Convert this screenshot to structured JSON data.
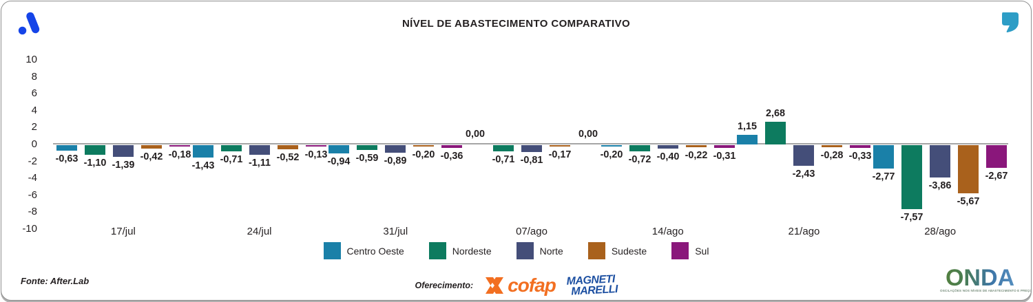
{
  "header": {
    "title": "NÍVEL DE ABASTECIMENTO COMPARATIVO",
    "brand_logo": "abstract-dot-slash-mark",
    "brand_color": "#1544e8",
    "quote_icon": "quote-mark",
    "quote_color": "#2d9dc6"
  },
  "chart_data": {
    "type": "bar",
    "title": "NÍVEL DE ABASTECIMENTO COMPARATIVO",
    "categories": [
      "17/jul",
      "24/jul",
      "31/jul",
      "07/ago",
      "14/ago",
      "21/ago",
      "28/ago"
    ],
    "series": [
      {
        "name": "Centro Oeste",
        "color": "#1a80a8",
        "values": [
          -0.63,
          -1.43,
          -0.94,
          0.0,
          -0.2,
          1.15,
          -2.77
        ]
      },
      {
        "name": "Nordeste",
        "color": "#0d7b5f",
        "values": [
          -1.1,
          -0.71,
          -0.59,
          -0.71,
          -0.72,
          2.68,
          -7.57
        ]
      },
      {
        "name": "Norte",
        "color": "#444e79",
        "values": [
          -1.39,
          -1.11,
          -0.89,
          -0.81,
          -0.4,
          -2.43,
          -3.86
        ]
      },
      {
        "name": "Sudeste",
        "color": "#a9611c",
        "values": [
          -0.42,
          -0.52,
          -0.2,
          -0.17,
          -0.22,
          -0.28,
          -5.67
        ]
      },
      {
        "name": "Sul",
        "color": "#8a177b",
        "values": [
          -0.18,
          -0.13,
          -0.36,
          0.0,
          -0.31,
          -0.33,
          -2.67
        ]
      }
    ],
    "ylim": [
      -10,
      10
    ],
    "yticks": [
      10,
      8,
      6,
      4,
      2,
      0,
      -2,
      -4,
      -6,
      -8,
      -10
    ],
    "grid": false,
    "legend_position": "bottom",
    "decimal_separator": ",",
    "axis_line_color": "#a5a5a5"
  },
  "footer": {
    "source": "Fonte: After.Lab",
    "sponsor_label": "Oferecimento:",
    "cofap": {
      "text": "cofap",
      "color": "#f26f21"
    },
    "magneti": {
      "line1": "MAGNETI",
      "line2": "MARELLI",
      "color": "#1c4fa1"
    },
    "onda": {
      "text": "ONDA",
      "tagline": "OSCILAÇÕES NOS NÍVEIS DE ABASTECIMENTO E PREÇO"
    }
  }
}
